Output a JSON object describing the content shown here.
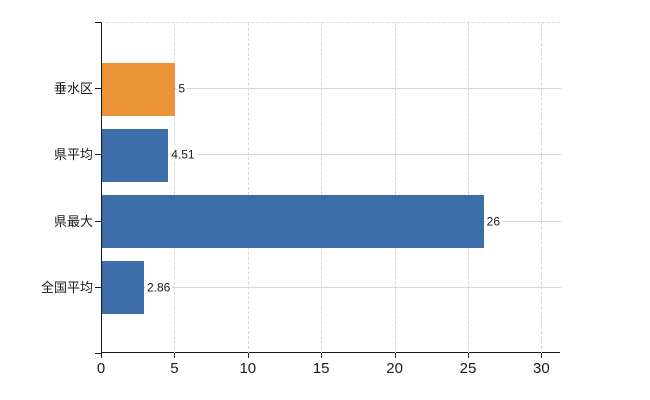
{
  "chart_data": {
    "type": "bar",
    "orientation": "horizontal",
    "title": "",
    "categories": [
      "垂水区",
      "県平均",
      "県最大",
      "全国平均"
    ],
    "values": [
      5,
      4.51,
      26,
      2.86
    ],
    "value_labels": [
      "5",
      "4.51",
      "26",
      "2.86"
    ],
    "bar_colors": [
      "#EB9337",
      "#3B6DA8",
      "#3B6DA8",
      "#3B6DA8"
    ],
    "x_ticks": [
      0,
      5,
      10,
      15,
      20,
      25,
      30
    ],
    "x_tick_labels": [
      "0",
      "5",
      "10",
      "15",
      "20",
      "25",
      "30"
    ],
    "xlim": [
      0,
      31.2
    ],
    "ylabel": "",
    "xlabel": "",
    "legend": "none",
    "grid_vertical_style": "dashed",
    "grid_horizontal_style": "solid",
    "plot_top_border_style": "dashed"
  },
  "colors": {
    "bar_orange": "#EB9337",
    "bar_blue": "#3B6DA8",
    "axis": "#1a1a1a",
    "grid_vertical": "#d6d6d6",
    "grid_horizontal": "#d3d8d1",
    "text": "#1a1a1a",
    "background": "#ffffff"
  }
}
